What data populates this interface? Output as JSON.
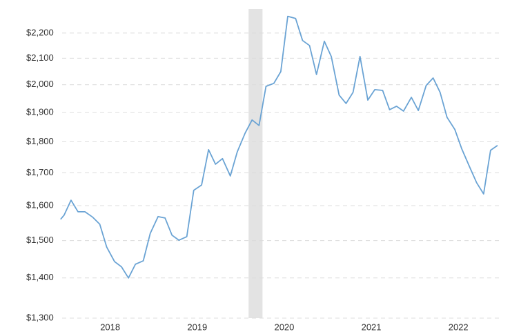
{
  "chart_data": {
    "type": "line",
    "log_scale": true,
    "grid": true,
    "x": [
      2017.43,
      2017.47,
      2017.55,
      2017.63,
      2017.71,
      2017.8,
      2017.88,
      2017.96,
      2018.05,
      2018.13,
      2018.21,
      2018.29,
      2018.38,
      2018.46,
      2018.55,
      2018.63,
      2018.71,
      2018.79,
      2018.88,
      2018.96,
      2019.05,
      2019.13,
      2019.21,
      2019.29,
      2019.38,
      2019.46,
      2019.55,
      2019.63,
      2019.71,
      2019.79,
      2019.88,
      2019.96,
      2020.04,
      2020.13,
      2020.21,
      2020.29,
      2020.37,
      2020.46,
      2020.54,
      2020.63,
      2020.71,
      2020.79,
      2020.87,
      2020.96,
      2021.04,
      2021.13,
      2021.21,
      2021.29,
      2021.37,
      2021.46,
      2021.54,
      2021.63,
      2021.71,
      2021.79,
      2021.87,
      2021.96,
      2022.04,
      2022.13,
      2022.21,
      2022.29,
      2022.37,
      2022.45
    ],
    "series": [
      {
        "color": "#6aa3d4",
        "values": [
          1560,
          1572,
          1616,
          1582,
          1582,
          1566,
          1546,
          1482,
          1443,
          1429,
          1400,
          1436,
          1445,
          1520,
          1568,
          1564,
          1515,
          1501,
          1511,
          1646,
          1662,
          1774,
          1727,
          1745,
          1690,
          1767,
          1829,
          1874,
          1855,
          1994,
          2005,
          2049,
          2269,
          2260,
          2170,
          2150,
          2038,
          2167,
          2107,
          1962,
          1932,
          1972,
          2107,
          1944,
          1982,
          1979,
          1910,
          1922,
          1905,
          1954,
          1907,
          1997,
          2025,
          1972,
          1883,
          1841,
          1776,
          1718,
          1669,
          1635,
          1772,
          1788
        ]
      }
    ],
    "shaded_range": {
      "x": [
        2019.59,
        2019.75
      ],
      "color": "#e3e3e3"
    },
    "xlim": [
      2017.4,
      2022.49
    ],
    "xticks": [
      2018,
      2019,
      2020,
      2021,
      2022
    ],
    "ylim": [
      1300,
      2300
    ],
    "yticks": [
      {
        "value": 1300,
        "label": "$1,300"
      },
      {
        "value": 1400,
        "label": "$1,400"
      },
      {
        "value": 1500,
        "label": "$1,500"
      },
      {
        "value": 1600,
        "label": "$1,600"
      },
      {
        "value": 1700,
        "label": "$1,700"
      },
      {
        "value": 1800,
        "label": "$1,800"
      },
      {
        "value": 1900,
        "label": "$1,900"
      },
      {
        "value": 2000,
        "label": "$2,000"
      },
      {
        "value": 2100,
        "label": "$2,100"
      },
      {
        "value": 2200,
        "label": "$2,200"
      }
    ]
  }
}
